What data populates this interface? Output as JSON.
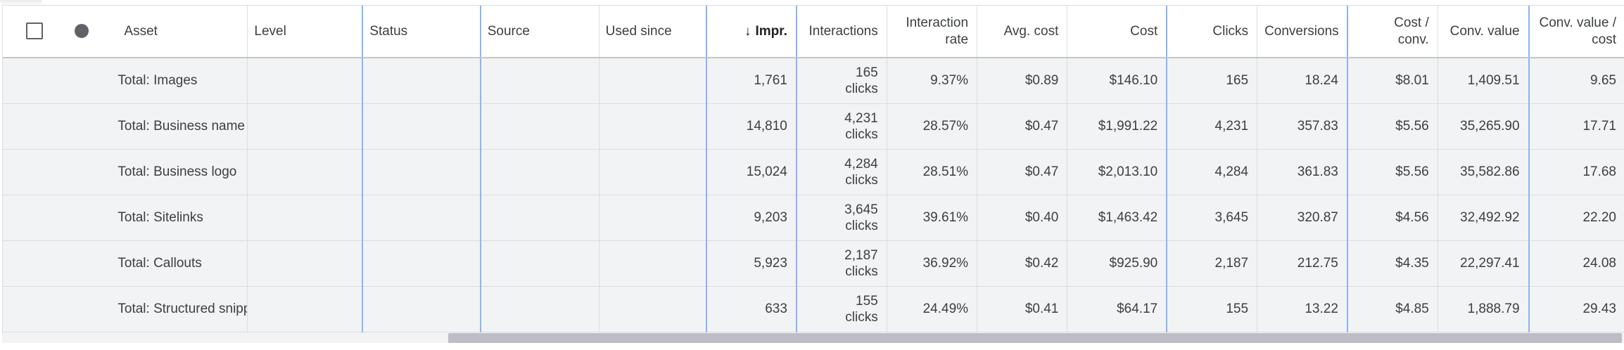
{
  "header": {
    "asset": "Asset",
    "level": "Level",
    "status": "Status",
    "source": "Source",
    "used_since": "Used since",
    "sort_arrow": "↓",
    "impr": "Impr.",
    "interactions": "Interactions",
    "interaction_rate": "Interaction rate",
    "avg_cost": "Avg. cost",
    "cost": "Cost",
    "clicks": "Clicks",
    "conversions": "Conversions",
    "cost_conv": "Cost / conv.",
    "conv_value": "Conv. value",
    "conv_value_cost": "Conv. value / cost"
  },
  "rows": [
    {
      "asset": "Total: Images",
      "impr": "1,761",
      "interactions": "165",
      "interactions_unit": "clicks",
      "interaction_rate": "9.37%",
      "avg_cost": "$0.89",
      "cost": "$146.10",
      "clicks": "165",
      "conversions": "18.24",
      "cost_conv": "$8.01",
      "conv_value": "1,409.51",
      "conv_value_cost": "9.65"
    },
    {
      "asset": "Total: Business name",
      "impr": "14,810",
      "interactions": "4,231",
      "interactions_unit": "clicks",
      "interaction_rate": "28.57%",
      "avg_cost": "$0.47",
      "cost": "$1,991.22",
      "clicks": "4,231",
      "conversions": "357.83",
      "cost_conv": "$5.56",
      "conv_value": "35,265.90",
      "conv_value_cost": "17.71"
    },
    {
      "asset": "Total: Business logo",
      "impr": "15,024",
      "interactions": "4,284",
      "interactions_unit": "clicks",
      "interaction_rate": "28.51%",
      "avg_cost": "$0.47",
      "cost": "$2,013.10",
      "clicks": "4,284",
      "conversions": "361.83",
      "cost_conv": "$5.56",
      "conv_value": "35,582.86",
      "conv_value_cost": "17.68"
    },
    {
      "asset": "Total: Sitelinks",
      "impr": "9,203",
      "interactions": "3,645",
      "interactions_unit": "clicks",
      "interaction_rate": "39.61%",
      "avg_cost": "$0.40",
      "cost": "$1,463.42",
      "clicks": "3,645",
      "conversions": "320.87",
      "cost_conv": "$4.56",
      "conv_value": "32,492.92",
      "conv_value_cost": "22.20"
    },
    {
      "asset": "Total: Callouts",
      "impr": "5,923",
      "interactions": "2,187",
      "interactions_unit": "clicks",
      "interaction_rate": "36.92%",
      "avg_cost": "$0.42",
      "cost": "$925.90",
      "clicks": "2,187",
      "conversions": "212.75",
      "cost_conv": "$4.35",
      "conv_value": "22,297.41",
      "conv_value_cost": "24.08"
    },
    {
      "asset": "Total: Structured snippets",
      "impr": "633",
      "interactions": "155",
      "interactions_unit": "clicks",
      "interaction_rate": "24.49%",
      "avg_cost": "$0.41",
      "cost": "$64.17",
      "clicks": "155",
      "conversions": "13.22",
      "cost_conv": "$4.85",
      "conv_value": "1,888.79",
      "conv_value_cost": "29.43"
    }
  ],
  "icons": {
    "select_all": "checkbox-icon",
    "status": "status-dot-icon"
  },
  "colors": {
    "column_separator": "#8ab4f8",
    "row_background": "#f1f3f4",
    "scrollbar_thumb": "#bdbdc6"
  }
}
